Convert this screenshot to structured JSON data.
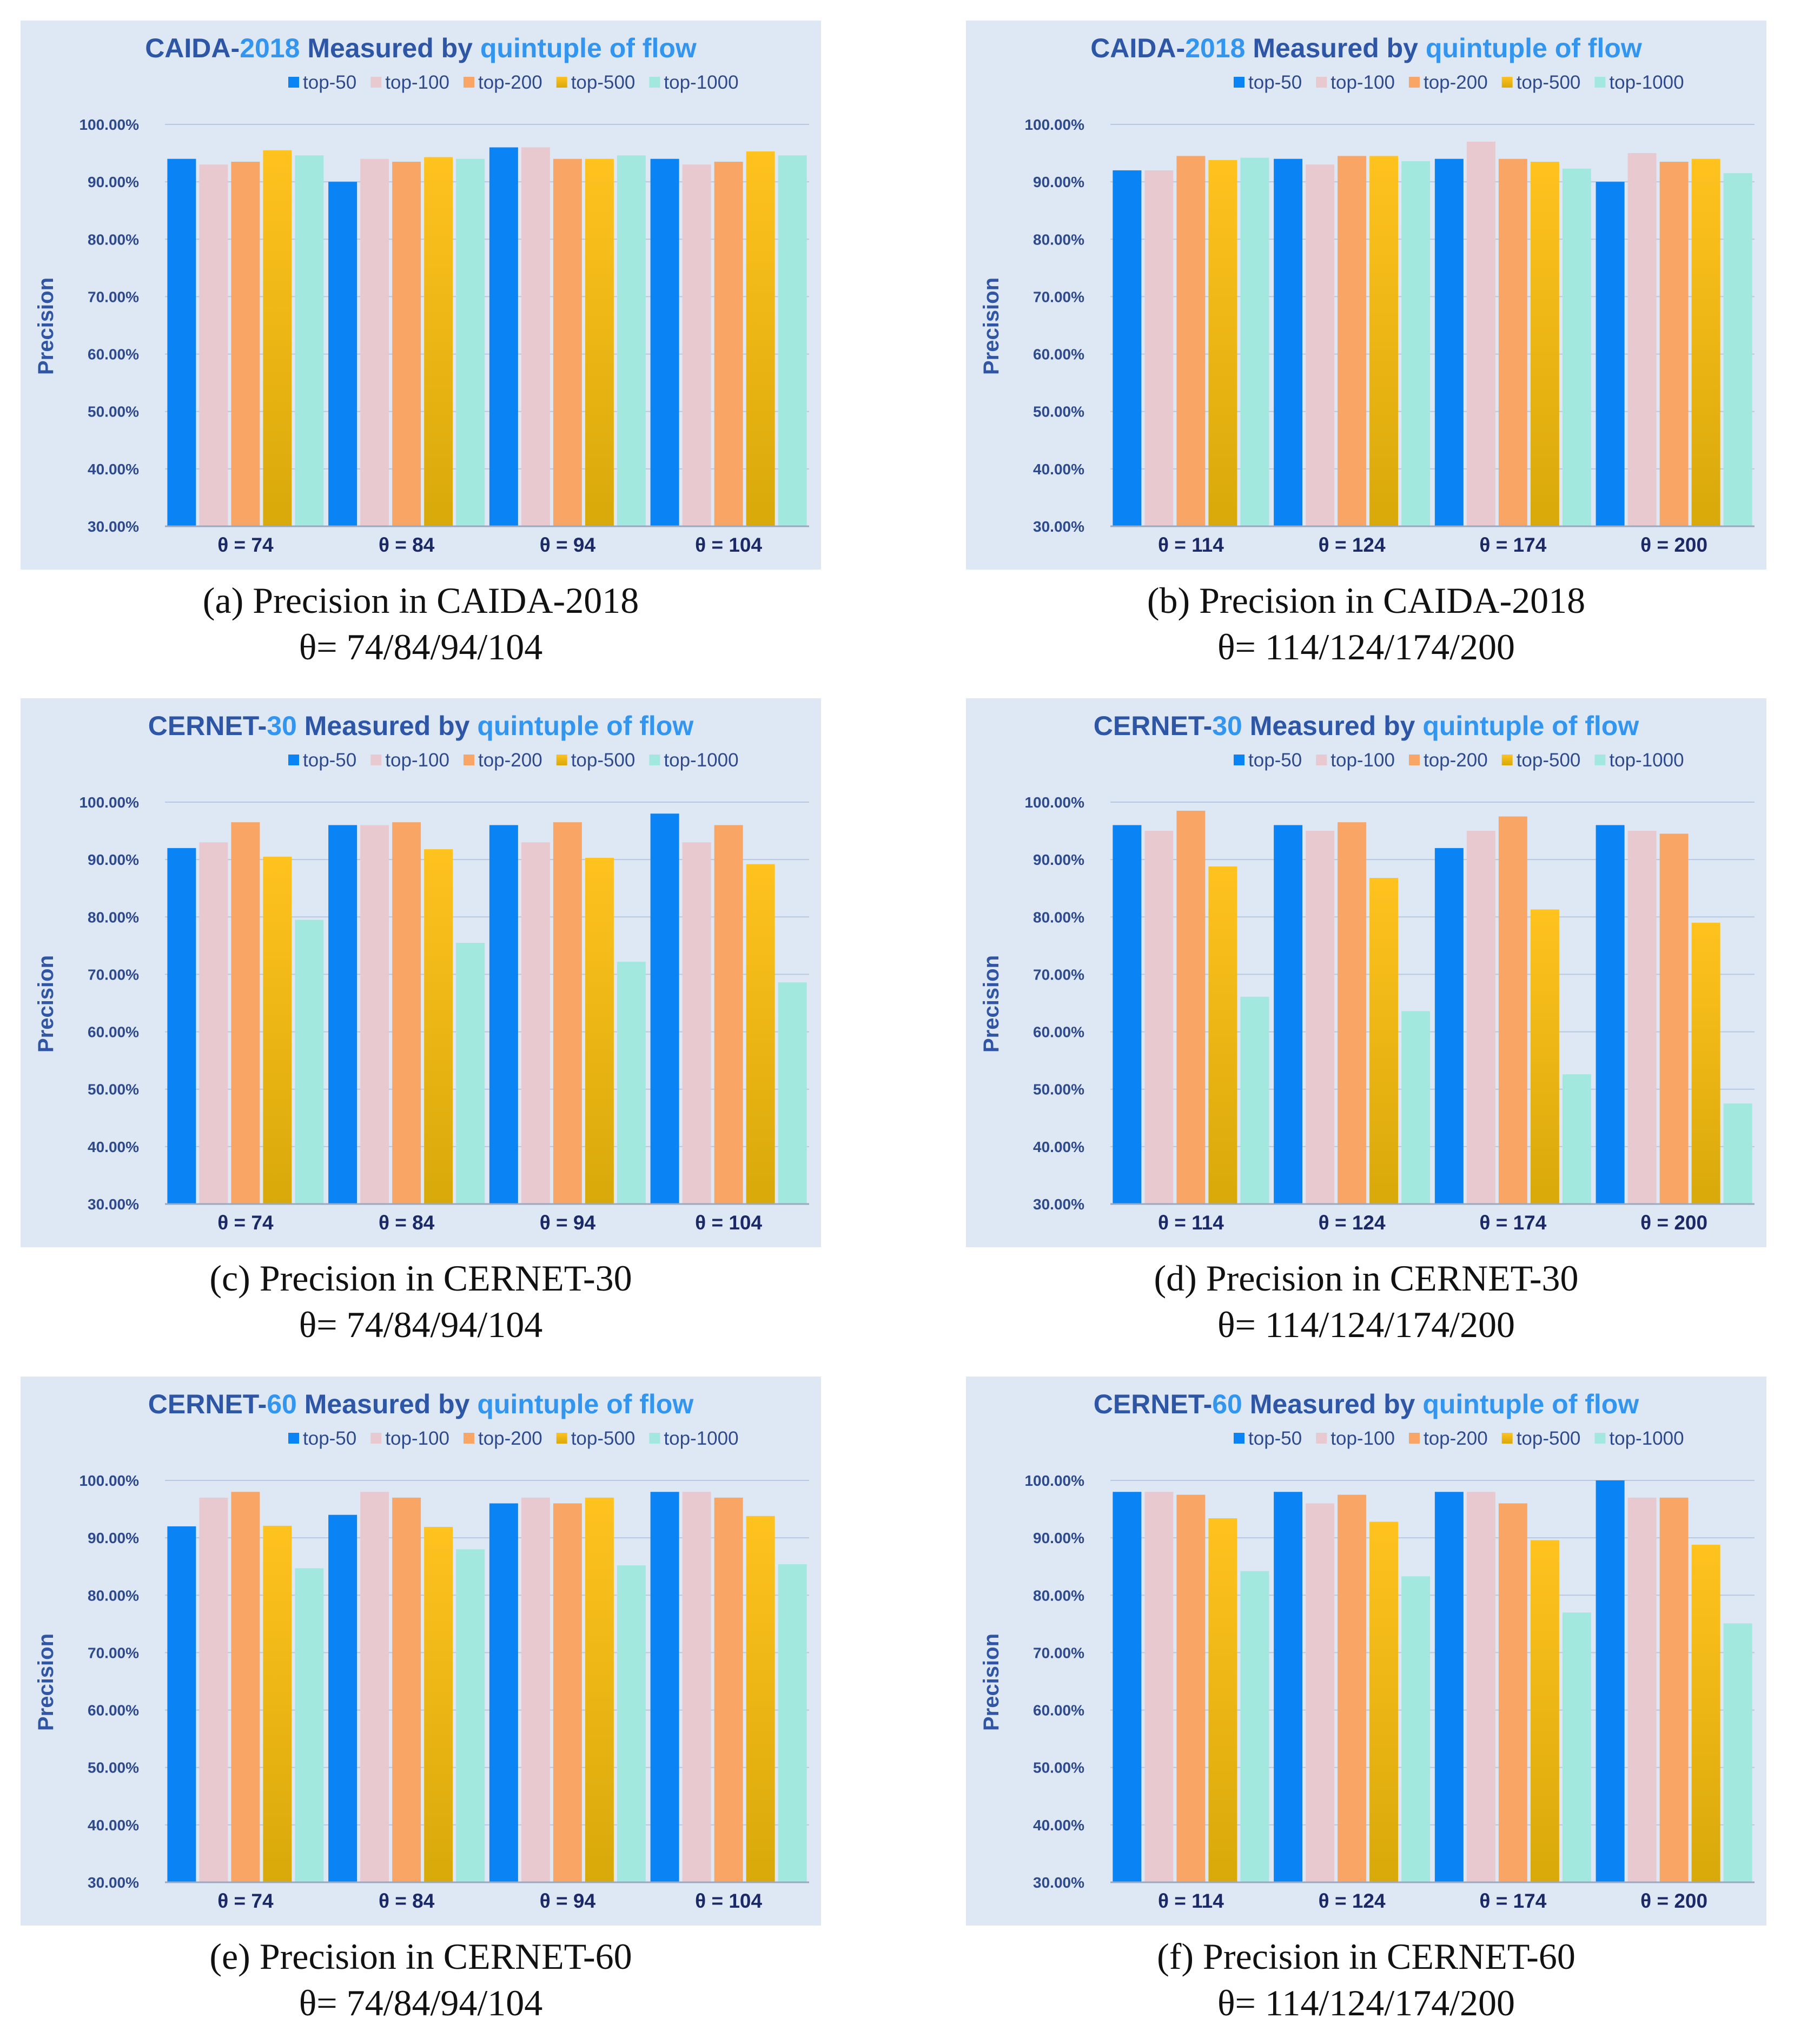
{
  "figure": {
    "series": [
      {
        "name": "top-50",
        "color": "#0a84f5",
        "gradient": false
      },
      {
        "name": "top-100",
        "color": "#e8c9d0",
        "gradient": false
      },
      {
        "name": "top-200",
        "color": "#f8a566",
        "gradient": false
      },
      {
        "name": "top-500",
        "color": "#ffc21f",
        "gradient": true,
        "color_bottom": "#d8a90a"
      },
      {
        "name": "top-1000",
        "color": "#a3e8de",
        "gradient": false
      }
    ],
    "title_colors": {
      "main": "#2e56a6",
      "accent": "#3296f0"
    },
    "y_tick_labels": [
      "100.00%",
      "90.00%",
      "80.00%",
      "70.00%",
      "60.00%",
      "50.00%",
      "40.00%",
      "30.00%"
    ]
  },
  "chart_data": [
    {
      "id": "a",
      "type": "bar",
      "title_parts": [
        {
          "text": "CAIDA-",
          "tone": "main"
        },
        {
          "text": "2018",
          "tone": "accent"
        },
        {
          "text": "  Measured by ",
          "tone": "main"
        },
        {
          "text": "quintuple of flow",
          "tone": "accent"
        }
      ],
      "ylabel": "Precision",
      "ylim": [
        30,
        100
      ],
      "categories": [
        "θ = 74",
        "θ = 84",
        "θ = 94",
        "θ = 104"
      ],
      "series": [
        {
          "name": "top-50",
          "values": [
            94,
            90,
            96,
            94
          ]
        },
        {
          "name": "top-100",
          "values": [
            93,
            94,
            96,
            93
          ]
        },
        {
          "name": "top-200",
          "values": [
            93.5,
            93.5,
            94,
            93.5
          ]
        },
        {
          "name": "top-500",
          "values": [
            95.5,
            94.3,
            94,
            95.3
          ]
        },
        {
          "name": "top-1000",
          "values": [
            94.6,
            94,
            94.6,
            94.6
          ]
        }
      ],
      "caption": [
        "(a) Precision in CAIDA-2018",
        "θ= 74/84/94/104"
      ]
    },
    {
      "id": "b",
      "type": "bar",
      "title_parts": [
        {
          "text": "CAIDA-",
          "tone": "main"
        },
        {
          "text": "2018",
          "tone": "accent"
        },
        {
          "text": "  Measured by ",
          "tone": "main"
        },
        {
          "text": "quintuple of flow",
          "tone": "accent"
        }
      ],
      "ylabel": "Precision",
      "ylim": [
        30,
        100
      ],
      "categories": [
        "θ = 114",
        "θ = 124",
        "θ = 174",
        "θ = 200"
      ],
      "series": [
        {
          "name": "top-50",
          "values": [
            92,
            94,
            94,
            90
          ]
        },
        {
          "name": "top-100",
          "values": [
            92,
            93,
            97,
            95
          ]
        },
        {
          "name": "top-200",
          "values": [
            94.5,
            94.5,
            94,
            93.5
          ]
        },
        {
          "name": "top-500",
          "values": [
            93.8,
            94.5,
            93.5,
            94
          ]
        },
        {
          "name": "top-1000",
          "values": [
            94.2,
            93.6,
            92.3,
            91.5
          ]
        }
      ],
      "caption": [
        "(b) Precision in CAIDA-2018",
        "θ= 114/124/174/200"
      ]
    },
    {
      "id": "c",
      "type": "bar",
      "title_parts": [
        {
          "text": "CERNET-",
          "tone": "main"
        },
        {
          "text": "30",
          "tone": "accent"
        },
        {
          "text": "  Measured by ",
          "tone": "main"
        },
        {
          "text": "quintuple of flow",
          "tone": "accent"
        }
      ],
      "ylabel": "Precision",
      "ylim": [
        30,
        100
      ],
      "categories": [
        "θ = 74",
        "θ = 84",
        "θ = 94",
        "θ = 104"
      ],
      "series": [
        {
          "name": "top-50",
          "values": [
            92,
            96,
            96,
            98
          ]
        },
        {
          "name": "top-100",
          "values": [
            93,
            96,
            93,
            93
          ]
        },
        {
          "name": "top-200",
          "values": [
            96.5,
            96.5,
            96.5,
            96
          ]
        },
        {
          "name": "top-500",
          "values": [
            90.5,
            91.8,
            90.3,
            89.2
          ]
        },
        {
          "name": "top-1000",
          "values": [
            79.5,
            75.5,
            72.2,
            68.6
          ]
        }
      ],
      "caption": [
        "(c) Precision in CERNET-30",
        "θ= 74/84/94/104"
      ]
    },
    {
      "id": "d",
      "type": "bar",
      "title_parts": [
        {
          "text": "CERNET-",
          "tone": "main"
        },
        {
          "text": "30",
          "tone": "accent"
        },
        {
          "text": "  Measured by ",
          "tone": "main"
        },
        {
          "text": "quintuple of flow",
          "tone": "accent"
        }
      ],
      "ylabel": "Precision",
      "ylim": [
        30,
        100
      ],
      "categories": [
        "θ = 114",
        "θ = 124",
        "θ = 174",
        "θ = 200"
      ],
      "series": [
        {
          "name": "top-50",
          "values": [
            96,
            96,
            92,
            96
          ]
        },
        {
          "name": "top-100",
          "values": [
            95,
            95,
            95,
            95
          ]
        },
        {
          "name": "top-200",
          "values": [
            98.5,
            96.5,
            97.5,
            94.5
          ]
        },
        {
          "name": "top-500",
          "values": [
            88.8,
            86.8,
            81.3,
            79
          ]
        },
        {
          "name": "top-1000",
          "values": [
            66.1,
            63.6,
            52.6,
            47.5
          ]
        }
      ],
      "caption": [
        "(d) Precision in CERNET-30",
        "θ= 114/124/174/200"
      ]
    },
    {
      "id": "e",
      "type": "bar",
      "title_parts": [
        {
          "text": "CERNET-",
          "tone": "main"
        },
        {
          "text": "60",
          "tone": "accent"
        },
        {
          "text": "  Measured by ",
          "tone": "main"
        },
        {
          "text": "quintuple of flow",
          "tone": "accent"
        }
      ],
      "ylabel": "Precision",
      "ylim": [
        30,
        100
      ],
      "categories": [
        "θ = 74",
        "θ = 84",
        "θ = 94",
        "θ = 104"
      ],
      "series": [
        {
          "name": "top-50",
          "values": [
            92,
            94,
            96,
            98
          ]
        },
        {
          "name": "top-100",
          "values": [
            97,
            98,
            97,
            98
          ]
        },
        {
          "name": "top-200",
          "values": [
            98,
            97,
            96,
            97
          ]
        },
        {
          "name": "top-500",
          "values": [
            92.1,
            91.9,
            97,
            93.8
          ]
        },
        {
          "name": "top-1000",
          "values": [
            84.7,
            88,
            85.2,
            85.4
          ]
        }
      ],
      "caption": [
        "(e) Precision in CERNET-60",
        "θ= 74/84/94/104"
      ]
    },
    {
      "id": "f",
      "type": "bar",
      "title_parts": [
        {
          "text": "CERNET-",
          "tone": "main"
        },
        {
          "text": "60",
          "tone": "accent"
        },
        {
          "text": "  Measured by ",
          "tone": "main"
        },
        {
          "text": "quintuple of flow",
          "tone": "accent"
        }
      ],
      "ylabel": "Precision",
      "ylim": [
        30,
        100
      ],
      "categories": [
        "θ = 114",
        "θ = 124",
        "θ = 174",
        "θ = 200"
      ],
      "series": [
        {
          "name": "top-50",
          "values": [
            98,
            98,
            98,
            100
          ]
        },
        {
          "name": "top-100",
          "values": [
            98,
            96,
            98,
            97
          ]
        },
        {
          "name": "top-200",
          "values": [
            97.5,
            97.5,
            96,
            97
          ]
        },
        {
          "name": "top-500",
          "values": [
            93.4,
            92.8,
            89.6,
            88.8
          ]
        },
        {
          "name": "top-1000",
          "values": [
            84.2,
            83.3,
            77,
            75.1
          ]
        }
      ],
      "caption": [
        "(f) Precision in CERNET-60",
        "θ= 114/124/174/200"
      ]
    }
  ]
}
